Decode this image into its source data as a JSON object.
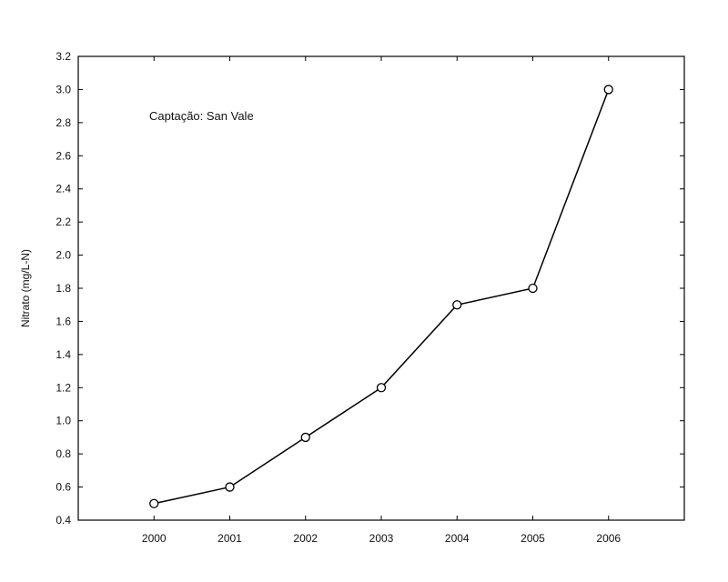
{
  "chart_data": {
    "type": "line",
    "title": "",
    "annotation": "Captação: San Vale",
    "xlabel": "",
    "ylabel": "Nitrato (mg/L-N)",
    "x": [
      "2000",
      "2001",
      "2002",
      "2003",
      "2004",
      "2005",
      "2006"
    ],
    "series": [
      {
        "values": [
          0.5,
          0.6,
          0.9,
          1.2,
          1.7,
          1.8,
          3.0
        ]
      }
    ],
    "ylim": [
      0.4,
      3.2
    ],
    "yticks": [
      "0.4",
      "0.6",
      "0.8",
      "1.0",
      "1.2",
      "1.4",
      "1.6",
      "1.8",
      "2.0",
      "2.2",
      "2.4",
      "2.6",
      "2.8",
      "3.0",
      "3.2"
    ],
    "xlim": [
      1999,
      2007
    ],
    "grid": false,
    "legend": "none",
    "colors": {
      "line": "#000000",
      "marker_fill": "#ffffff",
      "axis": "#000000"
    }
  }
}
